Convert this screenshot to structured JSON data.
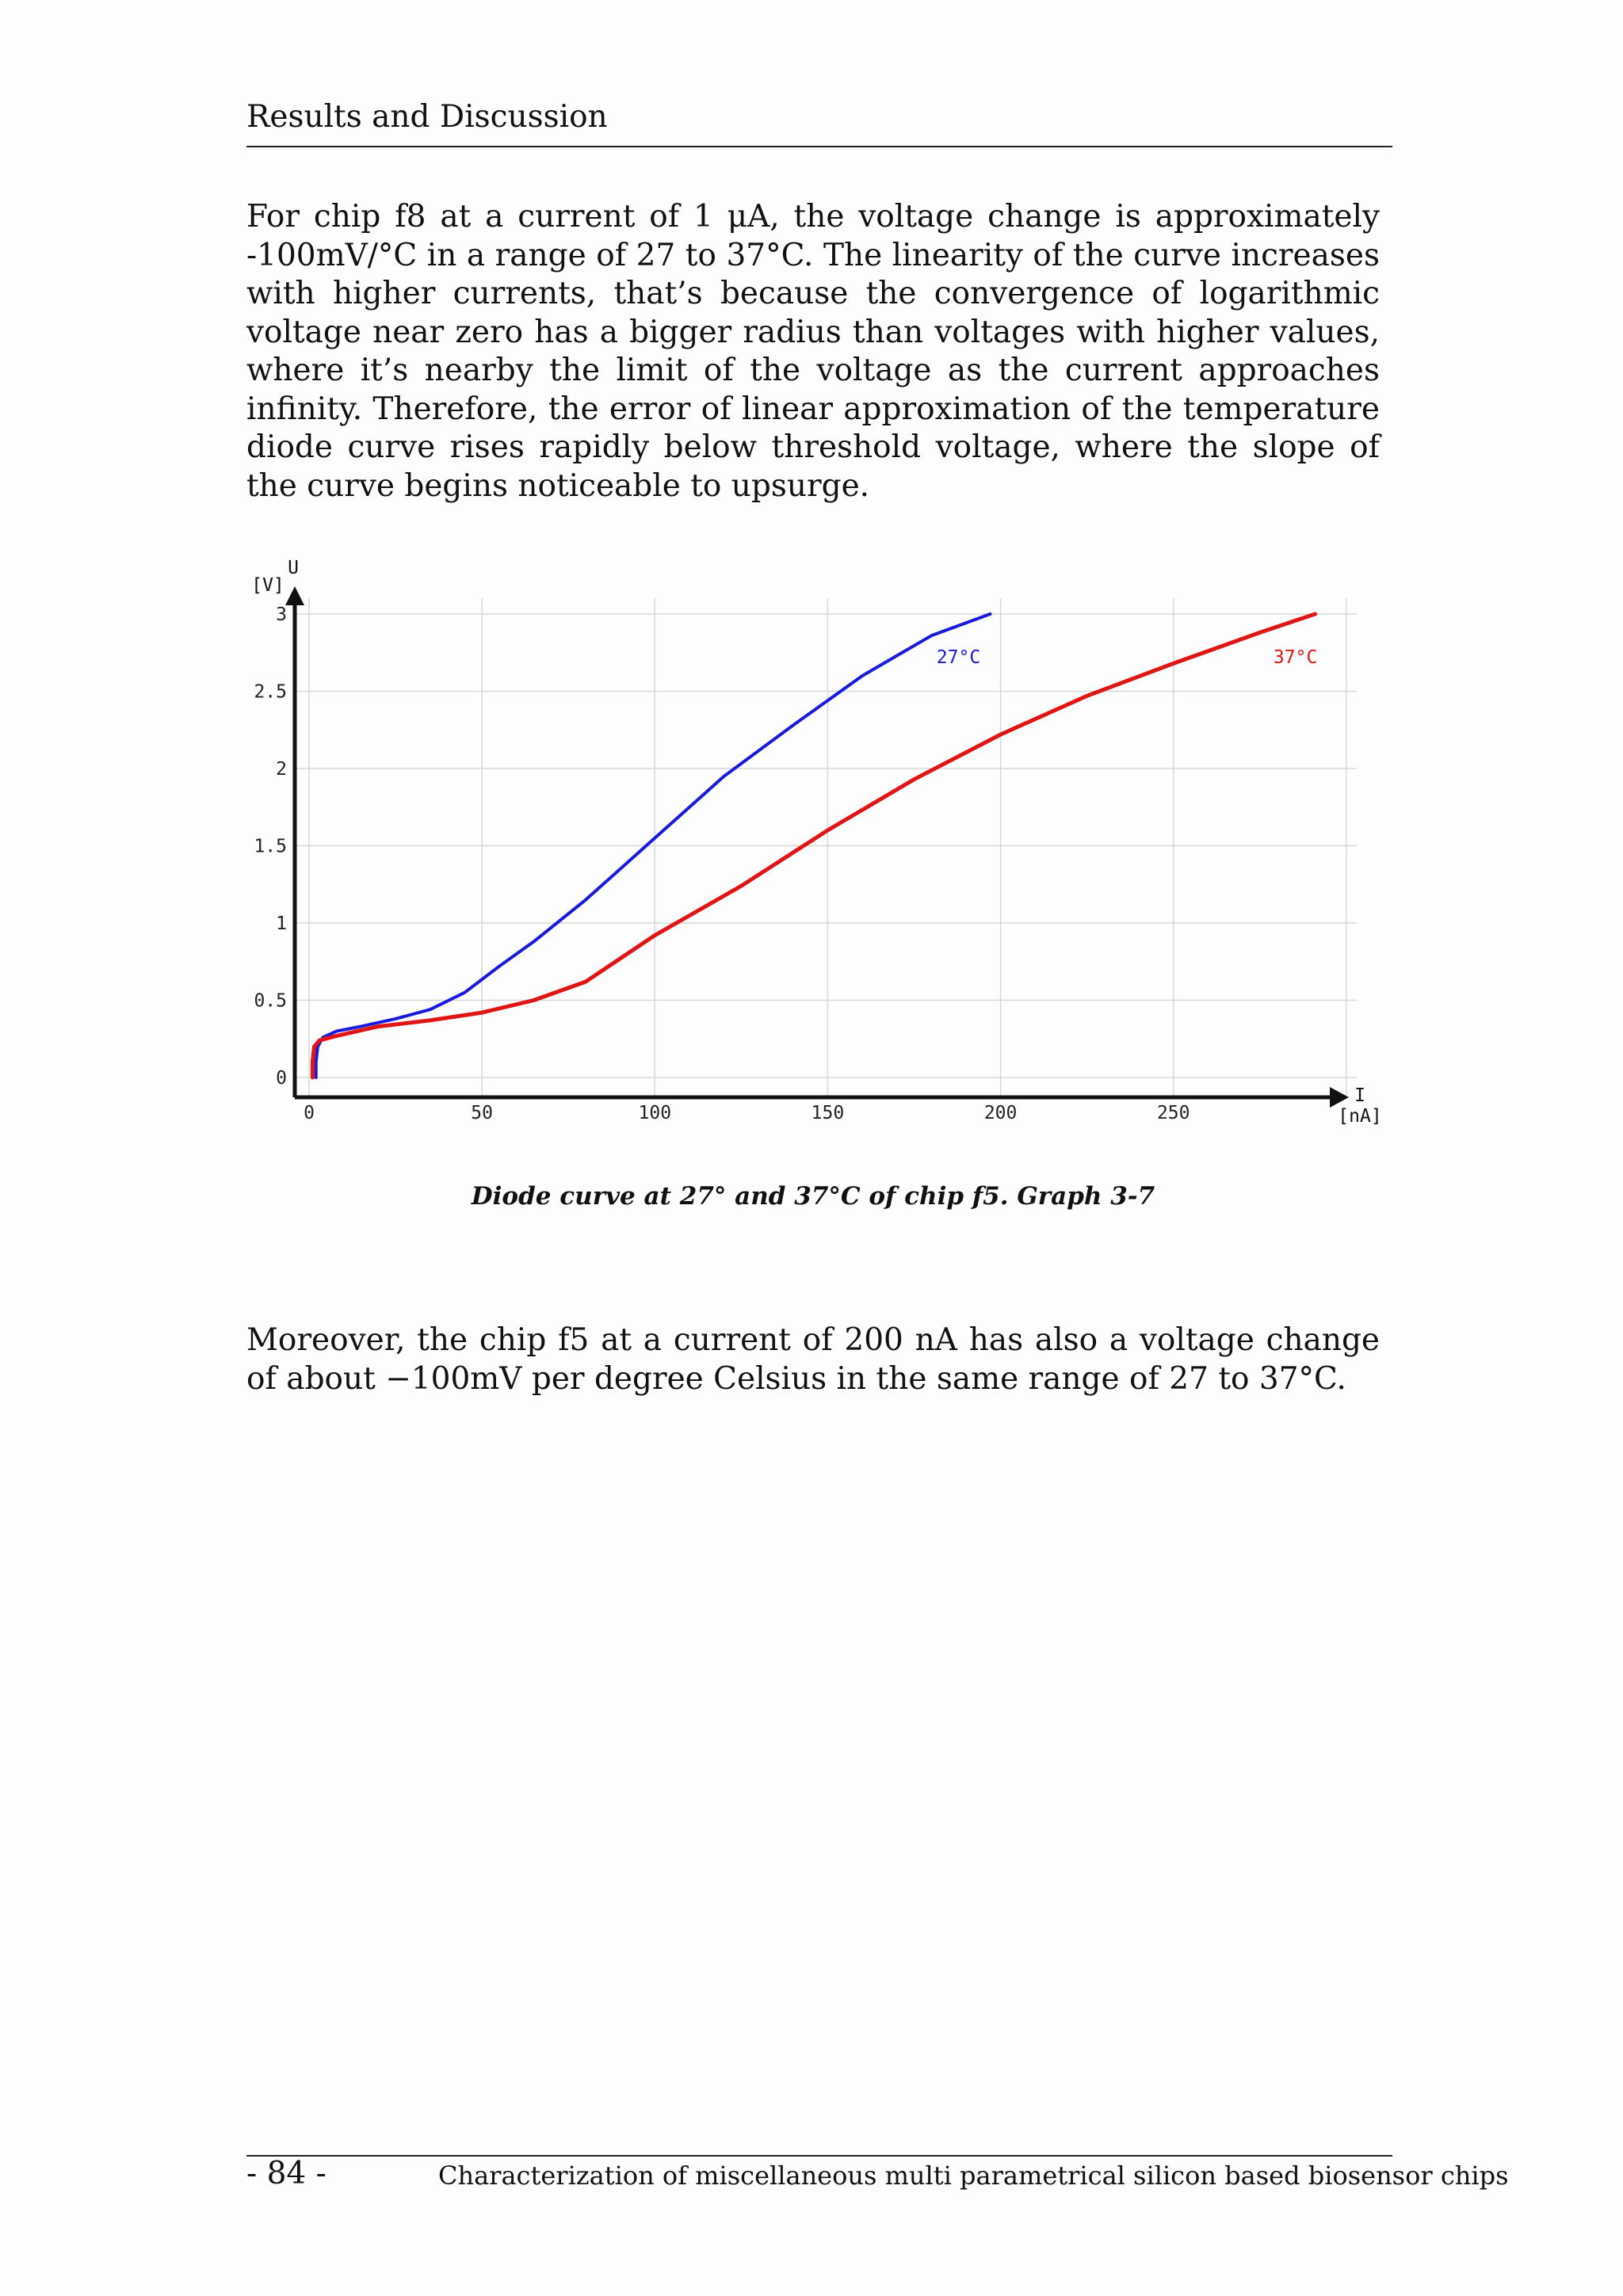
{
  "header": {
    "title": "Results and Discussion"
  },
  "paragraphs": {
    "p1": "For chip f8 at a current of 1 μA, the voltage change is approximately -100mV/°C in a range of 27 to 37°C. The linearity of the curve increases with higher currents, that’s because the convergence of logarithmic voltage near zero has a bigger radius than voltages with higher values, where it’s nearby the limit of the voltage as the current approaches infinity. Therefore, the error of linear approximation of the temperature diode curve rises rapidly below threshold voltage, where the slope of the curve begins noticeable to upsurge.",
    "p2": "Moreover, the chip f5 at a current of 200 nA has also a voltage change of about −100mV per degree Celsius in the same range of 27 to 37°C."
  },
  "figure": {
    "caption": "Diode curve at 27° and 37°C of chip f5. Graph 3-7"
  },
  "chart_data": {
    "type": "line",
    "x_axis": {
      "name": "I",
      "unit": "[nA]",
      "range": [
        0,
        300
      ],
      "ticks": [
        "0",
        "50",
        "100",
        "150",
        "200",
        "250"
      ]
    },
    "y_axis": {
      "name": "U",
      "unit": "[V]",
      "range": [
        0,
        3
      ],
      "ticks": [
        "0",
        "0.5",
        "1",
        "1.5",
        "2",
        "2.5",
        "3"
      ]
    },
    "grid": true,
    "series": [
      {
        "name": "27°C",
        "color": "#1a1adc",
        "points": [
          [
            2,
            0.0
          ],
          [
            2,
            0.1
          ],
          [
            2.5,
            0.2
          ],
          [
            4,
            0.26
          ],
          [
            8,
            0.3
          ],
          [
            15,
            0.33
          ],
          [
            25,
            0.38
          ],
          [
            35,
            0.44
          ],
          [
            45,
            0.55
          ],
          [
            55,
            0.72
          ],
          [
            65,
            0.88
          ],
          [
            80,
            1.15
          ],
          [
            100,
            1.55
          ],
          [
            120,
            1.95
          ],
          [
            140,
            2.28
          ],
          [
            160,
            2.6
          ],
          [
            180,
            2.86
          ],
          [
            197,
            3.0
          ]
        ]
      },
      {
        "name": "37°C",
        "color": "#e01515",
        "points": [
          [
            1,
            0.0
          ],
          [
            1,
            0.1
          ],
          [
            1.5,
            0.2
          ],
          [
            3,
            0.24
          ],
          [
            8,
            0.27
          ],
          [
            20,
            0.33
          ],
          [
            35,
            0.37
          ],
          [
            50,
            0.42
          ],
          [
            65,
            0.5
          ],
          [
            80,
            0.62
          ],
          [
            100,
            0.92
          ],
          [
            125,
            1.24
          ],
          [
            150,
            1.6
          ],
          [
            175,
            1.93
          ],
          [
            200,
            2.22
          ],
          [
            225,
            2.47
          ],
          [
            250,
            2.68
          ],
          [
            275,
            2.88
          ],
          [
            291,
            3.0
          ]
        ]
      }
    ]
  },
  "footer": {
    "page_number": "- 84 -",
    "title": "Characterization of miscellaneous multi parametrical silicon based biosensor chips"
  }
}
